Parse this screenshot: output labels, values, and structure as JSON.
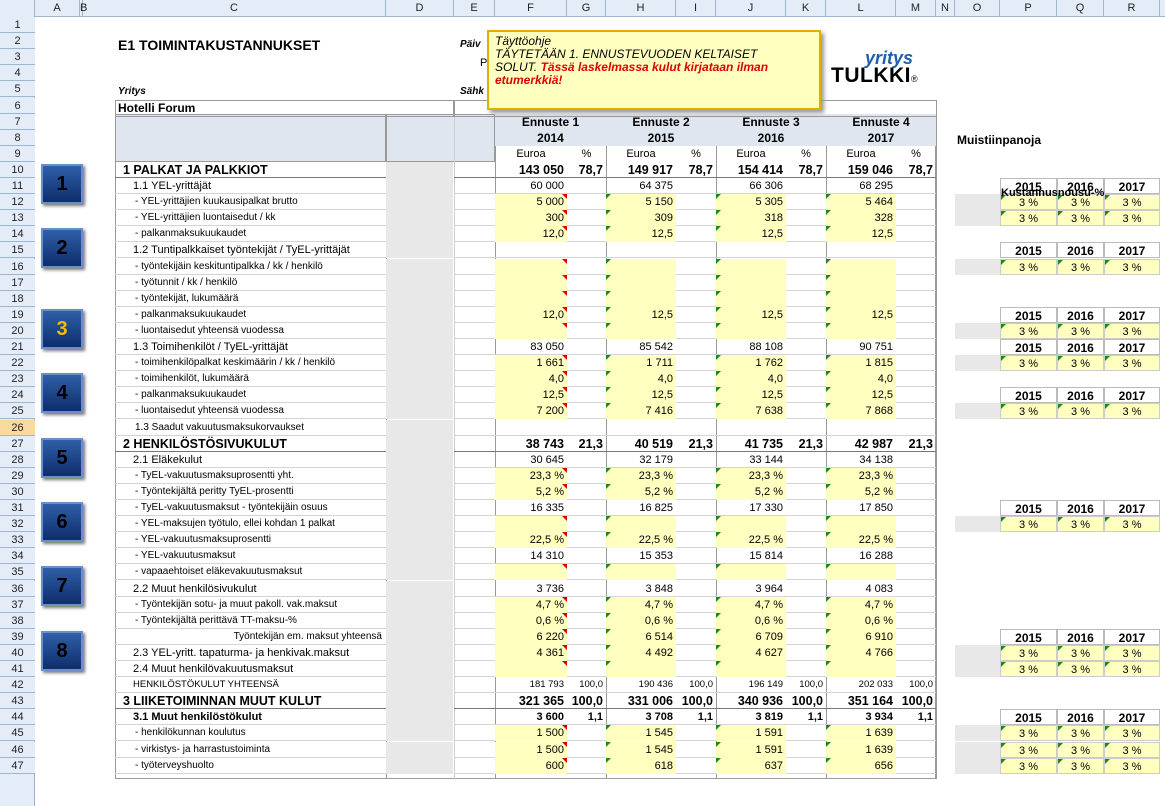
{
  "columns": [
    "A",
    "B",
    "C",
    "D",
    "E",
    "F",
    "G",
    "H",
    "I",
    "J",
    "K",
    "L",
    "M",
    "N",
    "O",
    "P",
    "Q",
    "R"
  ],
  "rows": [
    "1",
    "2",
    "3",
    "4",
    "5",
    "6",
    "7",
    "8",
    "9",
    "10",
    "11",
    "12",
    "13",
    "14",
    "15",
    "16",
    "17",
    "18",
    "19",
    "20",
    "21",
    "22",
    "23",
    "24",
    "25",
    "26",
    "27",
    "28",
    "29",
    "30",
    "31",
    "32",
    "33",
    "34",
    "35",
    "36",
    "37",
    "38",
    "39",
    "40",
    "41",
    "42",
    "43",
    "44",
    "45",
    "46",
    "47"
  ],
  "title": "E1  TOIMINTAKUSTANNUKSET",
  "label_paiv": "Päiv",
  "label_p": "P",
  "label_yritys": "Yritys",
  "label_sahk": "Sähk",
  "company": "Hotelli Forum",
  "note": {
    "line1": "Täyttöohje",
    "line2": "TÄYTETÄÄN  1. ENNUSTEVUODEN KELTAISET",
    "line3": "SOLUT.",
    "line3b": " Tässä  laskelmassa  kulut kirjataan ilman",
    "line4": "etumerkkiä!"
  },
  "logo": {
    "top": "yritys",
    "bottom": "TULKKI",
    "reg": "®"
  },
  "memo_title": "Muistiinpanoja",
  "cost_rise": "Kustannusnousu-%",
  "forecasts": [
    {
      "name": "Ennuste 1",
      "year": "2014"
    },
    {
      "name": "Ennuste 2",
      "year": "2015"
    },
    {
      "name": "Ennuste 3",
      "year": "2016"
    },
    {
      "name": "Ennuste 4",
      "year": "2017"
    }
  ],
  "unit_eur": "Euroa",
  "unit_pct": "%",
  "buttons": [
    "1",
    "2",
    "3",
    "4",
    "5",
    "6",
    "7",
    "8"
  ],
  "years": [
    "2015",
    "2016",
    "2017"
  ],
  "pct3": "3 %",
  "lines": [
    {
      "r": 10,
      "label": "1 PALKAT JA PALKKIOT",
      "b": true,
      "v": [
        "143 050",
        "78,7",
        "149 917",
        "78,7",
        "154 414",
        "78,7",
        "159 046",
        "78,7"
      ]
    },
    {
      "r": 11,
      "label": "1.1 YEL-yrittäjät",
      "v": [
        "60 000",
        "",
        "64 375",
        "",
        "66 306",
        "",
        "68 295",
        ""
      ]
    },
    {
      "r": 12,
      "label": "- YEL-yrittäjien kuukausipalkat brutto",
      "s": true,
      "y": true,
      "v": [
        "5 000",
        "",
        "5 150",
        "",
        "5 305",
        "",
        "5 464",
        ""
      ]
    },
    {
      "r": 13,
      "label": "- YEL-yrittäjien luontaisedut / kk",
      "s": true,
      "y": true,
      "v": [
        "300",
        "",
        "309",
        "",
        "318",
        "",
        "328",
        ""
      ]
    },
    {
      "r": 14,
      "label": "- palkanmaksukuukaudet",
      "s": true,
      "y": true,
      "v": [
        "12,0",
        "",
        "12,5",
        "",
        "12,5",
        "",
        "12,5",
        ""
      ]
    },
    {
      "r": 15,
      "label": "1.2 Tuntipalkkaiset työntekijät / TyEL-yrittäjät",
      "v": [
        "",
        "",
        "",
        "",
        "",
        "",
        "",
        ""
      ]
    },
    {
      "r": 16,
      "label": "- työntekijäin keskituntipalkka / kk / henkilö",
      "s": true,
      "y": true,
      "v": [
        "",
        "",
        "",
        "",
        "",
        "",
        "",
        ""
      ]
    },
    {
      "r": 17,
      "label": "- työtunnit / kk / henkilö",
      "s": true,
      "y": true,
      "v": [
        "",
        "",
        "",
        "",
        "",
        "",
        "",
        ""
      ]
    },
    {
      "r": 18,
      "label": "- työntekijät, lukumäärä",
      "s": true,
      "y": true,
      "v": [
        "",
        "",
        "",
        "",
        "",
        "",
        "",
        ""
      ]
    },
    {
      "r": 19,
      "label": "- palkanmaksukuukaudet",
      "s": true,
      "y": true,
      "v": [
        "12,0",
        "",
        "12,5",
        "",
        "12,5",
        "",
        "12,5",
        ""
      ]
    },
    {
      "r": 20,
      "label": "- luontaisedut yhteensä vuodessa",
      "s": true,
      "y": true,
      "v": [
        "",
        "",
        "",
        "",
        "",
        "",
        "",
        ""
      ]
    },
    {
      "r": 21,
      "label": "1.3 Toimihenkilöt / TyEL-yrittäjät",
      "v": [
        "83 050",
        "",
        "85 542",
        "",
        "88 108",
        "",
        "90 751",
        ""
      ]
    },
    {
      "r": 22,
      "label": "- toimihenkilöpalkat keskimäärin / kk / henkilö",
      "s": true,
      "y": true,
      "v": [
        "1 661",
        "",
        "1 711",
        "",
        "1 762",
        "",
        "1 815",
        ""
      ]
    },
    {
      "r": 23,
      "label": "- toimihenkilöt, lukumäärä",
      "s": true,
      "y": true,
      "v": [
        "4,0",
        "",
        "4,0",
        "",
        "4,0",
        "",
        "4,0",
        ""
      ]
    },
    {
      "r": 24,
      "label": "- palkanmaksukuukaudet",
      "s": true,
      "y": true,
      "v": [
        "12,5",
        "",
        "12,5",
        "",
        "12,5",
        "",
        "12,5",
        ""
      ]
    },
    {
      "r": 25,
      "label": "- luontaisedut yhteensä vuodessa",
      "s": true,
      "y": true,
      "v": [
        "7 200",
        "",
        "7 416",
        "",
        "7 638",
        "",
        "7 868",
        ""
      ]
    },
    {
      "r": 26,
      "label": "1.3 Saadut vakuutusmaksukorvaukset",
      "s": true,
      "v": [
        "",
        "",
        "",
        "",
        "",
        "",
        "",
        ""
      ]
    },
    {
      "r": 27,
      "label": "2 HENKILÖSTÖSIVUKULUT",
      "b": true,
      "v": [
        "38 743",
        "21,3",
        "40 519",
        "21,3",
        "41 735",
        "21,3",
        "42 987",
        "21,3"
      ]
    },
    {
      "r": 28,
      "label": "2.1 Eläkekulut",
      "v": [
        "30 645",
        "",
        "32 179",
        "",
        "33 144",
        "",
        "34 138",
        ""
      ]
    },
    {
      "r": 29,
      "label": "- TyEL-vakuutusmaksuprosentti yht.",
      "s": true,
      "y": true,
      "v": [
        "23,3 %",
        "",
        "23,3 %",
        "",
        "23,3 %",
        "",
        "23,3 %",
        ""
      ]
    },
    {
      "r": 30,
      "label": "- Työntekijältä peritty TyEL-prosentti",
      "s": true,
      "y": true,
      "v": [
        "5,2 %",
        "",
        "5,2 %",
        "",
        "5,2 %",
        "",
        "5,2 %",
        ""
      ]
    },
    {
      "r": 31,
      "label": "- TyEL-vakuutusmaksut - työntekijäin osuus",
      "s": true,
      "v": [
        "16 335",
        "",
        "16 825",
        "",
        "17 330",
        "",
        "17 850",
        ""
      ]
    },
    {
      "r": 32,
      "label": "- YEL-maksujen työtulo, ellei kohdan 1 palkat",
      "s": true,
      "y": true,
      "v": [
        "",
        "",
        "",
        "",
        "",
        "",
        "",
        ""
      ]
    },
    {
      "r": 33,
      "label": "- YEL-vakuutusmaksuprosentti",
      "s": true,
      "y": true,
      "v": [
        "22,5 %",
        "",
        "22,5 %",
        "",
        "22,5 %",
        "",
        "22,5 %",
        ""
      ]
    },
    {
      "r": 34,
      "label": "- YEL-vakuutusmaksut",
      "s": true,
      "v": [
        "14 310",
        "",
        "15 353",
        "",
        "15 814",
        "",
        "16 288",
        ""
      ]
    },
    {
      "r": 35,
      "label": "- vapaaehtoiset eläkevakuutusmaksut",
      "s": true,
      "y": true,
      "v": [
        "",
        "",
        "",
        "",
        "",
        "",
        "",
        ""
      ]
    },
    {
      "r": 36,
      "label": "2.2 Muut henkilösivukulut",
      "v": [
        "3 736",
        "",
        "3 848",
        "",
        "3 964",
        "",
        "4 083",
        ""
      ]
    },
    {
      "r": 37,
      "label": "- Työntekijän sotu- ja muut pakoll. vak.maksut",
      "s": true,
      "y": true,
      "v": [
        "4,7 %",
        "",
        "4,7 %",
        "",
        "4,7 %",
        "",
        "4,7 %",
        ""
      ]
    },
    {
      "r": 38,
      "label": "- Työntekijältä perittävä TT-maksu-%",
      "s": true,
      "y": true,
      "v": [
        "0,6 %",
        "",
        "0,6 %",
        "",
        "0,6 %",
        "",
        "0,6 %",
        ""
      ]
    },
    {
      "r": 39,
      "label": "Työntekijän em. maksut yhteensä",
      "s": true,
      "ind": true,
      "y": true,
      "v": [
        "6 220",
        "",
        "6 514",
        "",
        "6 709",
        "",
        "6 910",
        ""
      ]
    },
    {
      "r": 40,
      "label": "2.3 YEL-yritt. tapaturma- ja henkivak.maksut",
      "y": true,
      "v": [
        "4 361",
        "",
        "4 492",
        "",
        "4 627",
        "",
        "4 766",
        ""
      ]
    },
    {
      "r": 41,
      "label": "2.4 Muut henkilövakuutusmaksut",
      "y": true,
      "v": [
        "",
        "",
        "",
        "",
        "",
        "",
        "",
        ""
      ]
    },
    {
      "r": 42,
      "label": "HENKILÖSTÖKULUT YHTEENSÄ",
      "xs": true,
      "v": [
        "181 793",
        "100,0",
        "190 436",
        "100,0",
        "196 149",
        "100,0",
        "202 033",
        "100,0"
      ]
    },
    {
      "r": 43,
      "label": "3 LIIKETOIMINNAN MUUT KULUT",
      "b": true,
      "v": [
        "321 365",
        "100,0",
        "331 006",
        "100,0",
        "340 936",
        "100,0",
        "351 164",
        "100,0"
      ]
    },
    {
      "r": 44,
      "label": "3.1 Muut henkilöstökulut",
      "sb": true,
      "v": [
        "3 600",
        "1,1",
        "3 708",
        "1,1",
        "3 819",
        "1,1",
        "3 934",
        "1,1"
      ]
    },
    {
      "r": 45,
      "label": "- henkilökunnan koulutus",
      "s": true,
      "y": true,
      "v": [
        "1 500",
        "",
        "1 545",
        "",
        "1 591",
        "",
        "1 639",
        ""
      ]
    },
    {
      "r": 46,
      "label": "- virkistys- ja harrastustoiminta",
      "s": true,
      "y": true,
      "v": [
        "1 500",
        "",
        "1 545",
        "",
        "1 591",
        "",
        "1 639",
        ""
      ]
    },
    {
      "r": 47,
      "label": "- työterveyshuolto",
      "s": true,
      "y": true,
      "v": [
        "600",
        "",
        "618",
        "",
        "637",
        "",
        "656",
        ""
      ]
    }
  ],
  "rise_blocks": [
    11,
    15,
    19,
    21,
    24,
    31,
    39,
    44
  ],
  "rise_single": [
    11,
    15,
    19,
    24,
    31,
    39
  ],
  "rise_double": [
    11,
    19,
    24,
    39
  ],
  "buttons_rows": [
    10,
    14,
    19,
    23,
    27,
    31,
    35,
    39
  ]
}
